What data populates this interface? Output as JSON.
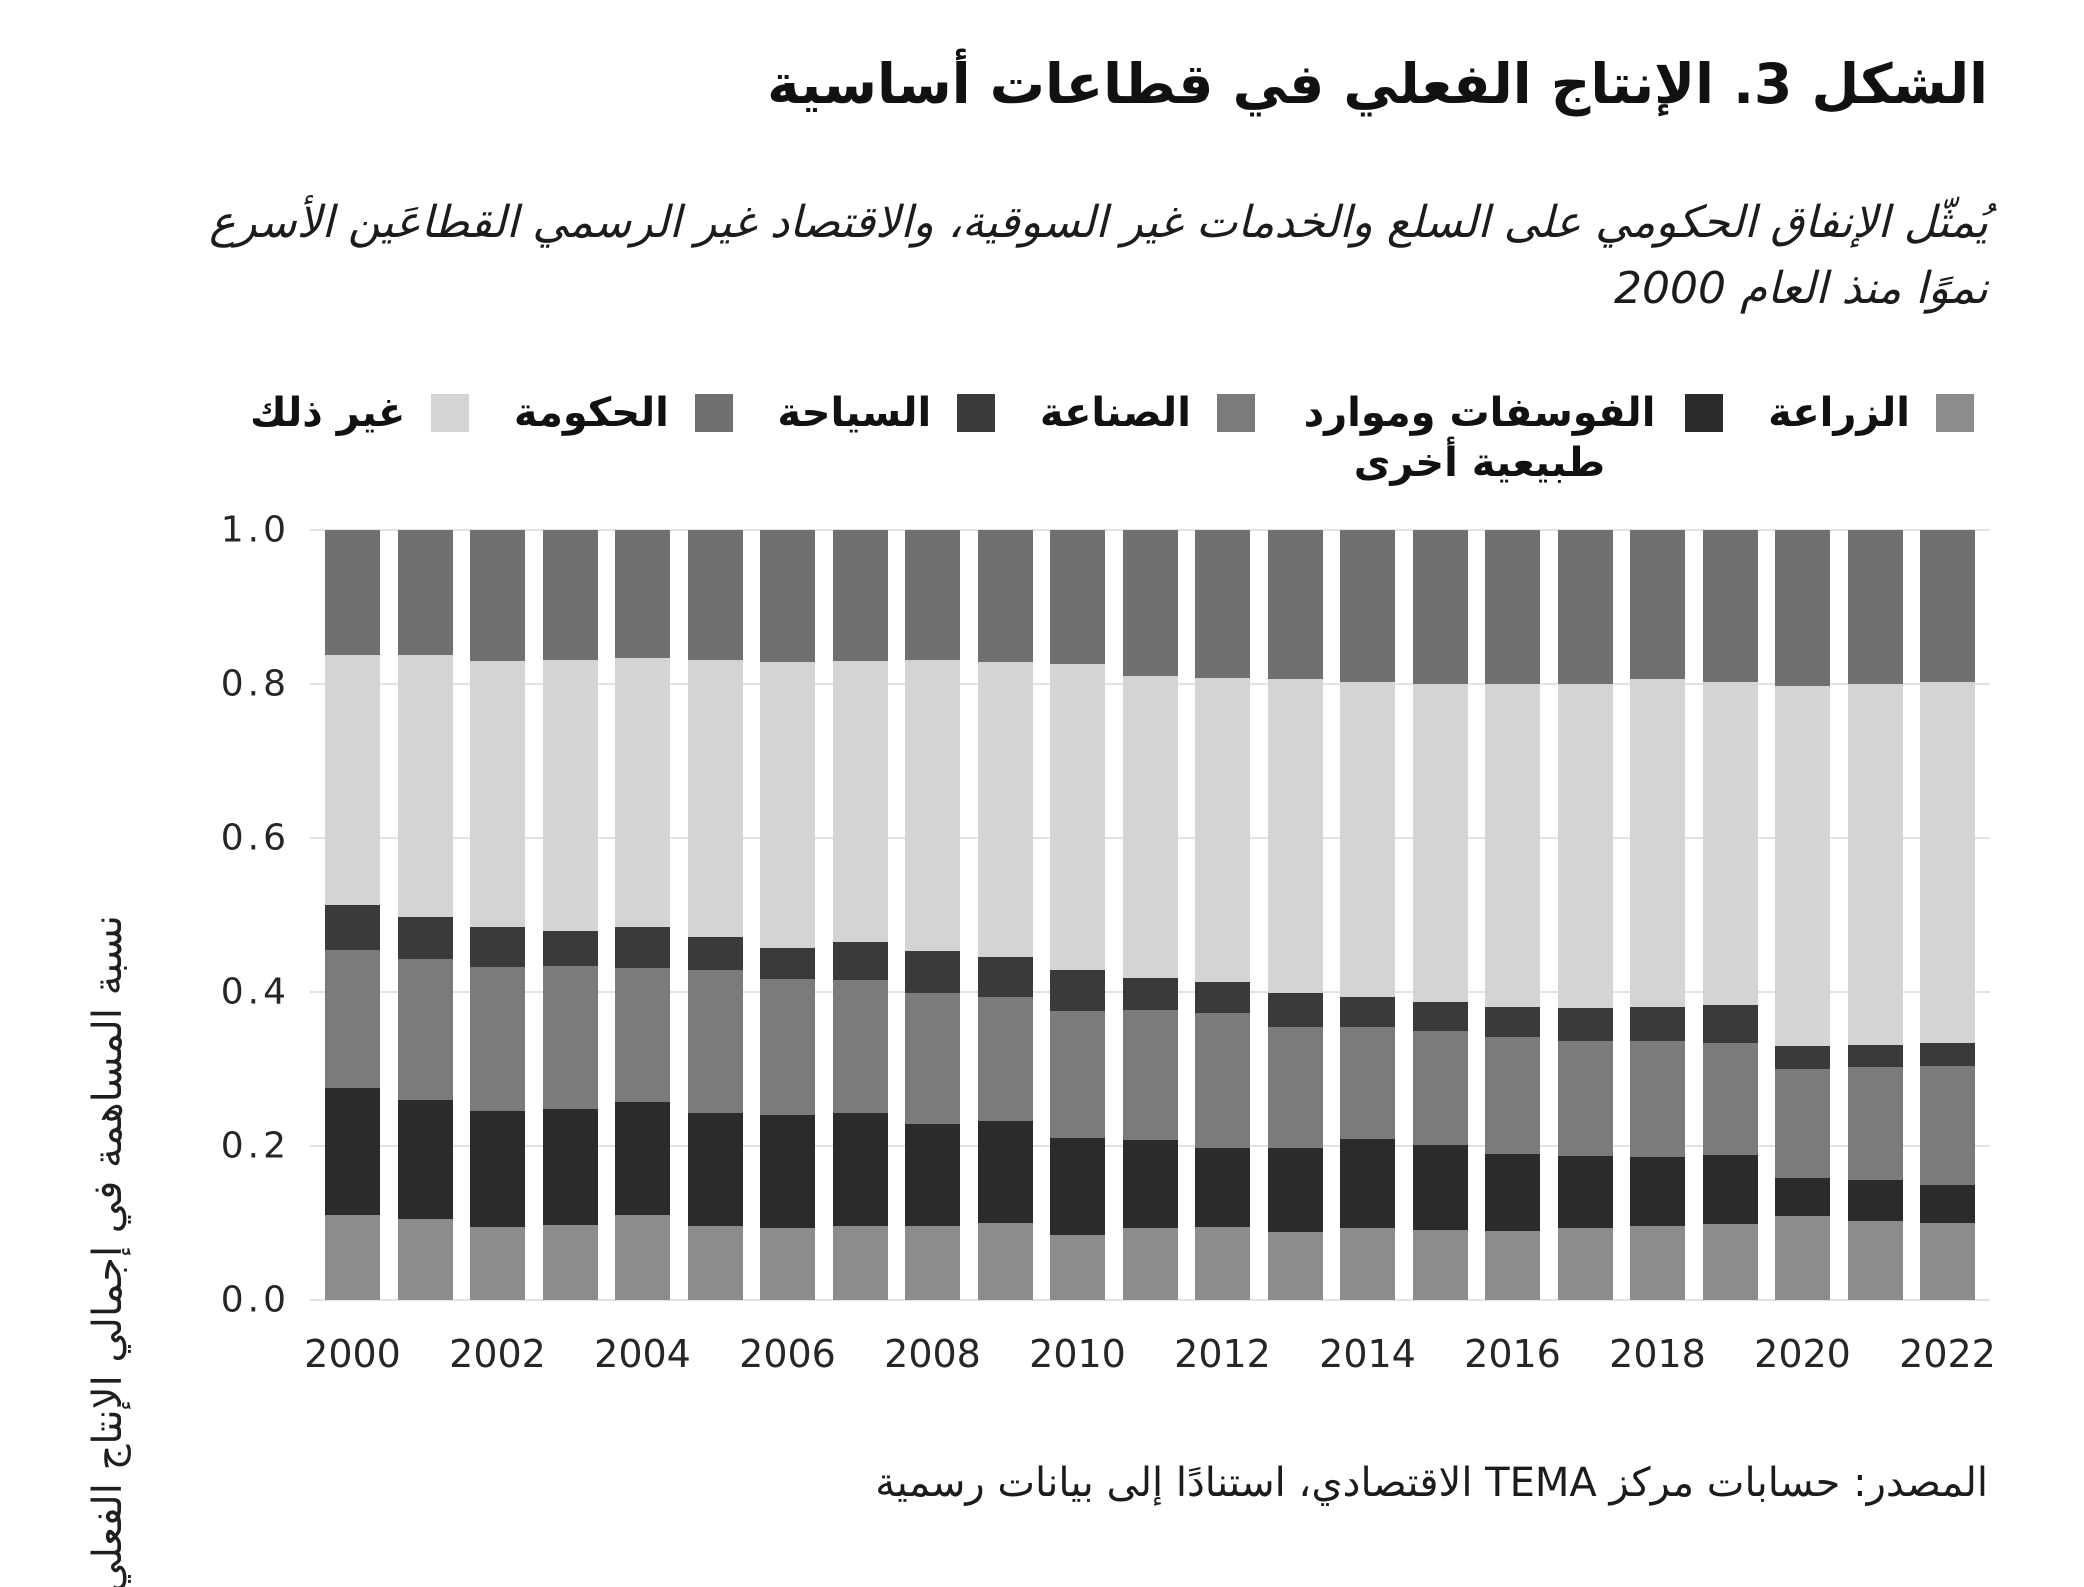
{
  "header": {
    "title": "الشكل 3. الإنتاج الفعلي في قطاعات أساسية",
    "subtitle_line1": "يُمثّل الإنفاق الحكومي على السلع والخدمات غير السوقية، والاقتصاد غير الرسمي القطاعَين الأسرع",
    "subtitle_line2": "نموًا منذ العام 2000"
  },
  "footer": {
    "source": "المصدر: حسابات مركز TEMA الاقتصادي، استنادًا إلى بيانات رسمية"
  },
  "colors": {
    "text": "#1a1a1a",
    "grid": "#e3e3e3",
    "agriculture": "#8c8c8c",
    "phosphates": "#2b2b2b",
    "industry": "#7b7b7b",
    "tourism": "#3a3a3a",
    "other": "#d4d4d4",
    "government": "#707070"
  },
  "chart_data": {
    "type": "bar",
    "stacked": true,
    "title": "الشكل 3. الإنتاج الفعلي في قطاعات أساسية",
    "xlabel": "",
    "ylabel": "نسبة المساهمة في إجمالي الإنتاج الفعلي",
    "ylim": [
      0.0,
      1.0
    ],
    "grid": "horizontal",
    "legend_position": "top",
    "y_tick_labels": [
      "0.0",
      "0.2",
      "0.4",
      "0.6",
      "0.8",
      "1.0"
    ],
    "x_tick_labels": [
      "2000",
      "2002",
      "2004",
      "2006",
      "2008",
      "2010",
      "2012",
      "2014",
      "2016",
      "2018",
      "2020",
      "2022"
    ],
    "categories": [
      2000,
      2001,
      2002,
      2003,
      2004,
      2005,
      2006,
      2007,
      2008,
      2009,
      2010,
      2011,
      2012,
      2013,
      2014,
      2015,
      2016,
      2017,
      2018,
      2019,
      2020,
      2021,
      2022
    ],
    "series_bottom_to_top": [
      {
        "name": "الزراعة",
        "color": "#8c8c8c",
        "values": [
          0.11,
          0.105,
          0.095,
          0.098,
          0.11,
          0.096,
          0.094,
          0.096,
          0.096,
          0.1,
          0.085,
          0.093,
          0.095,
          0.088,
          0.093,
          0.091,
          0.09,
          0.094,
          0.096,
          0.099,
          0.109,
          0.102,
          0.1
        ]
      },
      {
        "name": "الفوسفات وموارد طبيعية أخرى",
        "color": "#2b2b2b",
        "values": [
          0.165,
          0.155,
          0.15,
          0.15,
          0.147,
          0.147,
          0.146,
          0.147,
          0.133,
          0.132,
          0.126,
          0.115,
          0.102,
          0.109,
          0.116,
          0.11,
          0.1,
          0.093,
          0.09,
          0.089,
          0.049,
          0.054,
          0.05
        ]
      },
      {
        "name": "الصناعة",
        "color": "#7b7b7b",
        "values": [
          0.18,
          0.183,
          0.188,
          0.186,
          0.174,
          0.186,
          0.177,
          0.173,
          0.17,
          0.162,
          0.165,
          0.168,
          0.176,
          0.158,
          0.146,
          0.149,
          0.151,
          0.15,
          0.151,
          0.146,
          0.142,
          0.146,
          0.154
        ]
      },
      {
        "name": "السياحة",
        "color": "#3a3a3a",
        "values": [
          0.058,
          0.055,
          0.052,
          0.045,
          0.053,
          0.043,
          0.04,
          0.049,
          0.054,
          0.052,
          0.053,
          0.042,
          0.04,
          0.044,
          0.039,
          0.037,
          0.039,
          0.042,
          0.044,
          0.049,
          0.03,
          0.029,
          0.03
        ]
      },
      {
        "name": "غير ذلك",
        "color": "#d4d4d4",
        "values": [
          0.325,
          0.34,
          0.345,
          0.352,
          0.35,
          0.359,
          0.372,
          0.365,
          0.378,
          0.382,
          0.397,
          0.392,
          0.395,
          0.407,
          0.409,
          0.413,
          0.42,
          0.421,
          0.425,
          0.42,
          0.467,
          0.469,
          0.468
        ]
      },
      {
        "name": "الحكومة",
        "color": "#707070",
        "values": [
          0.162,
          0.162,
          0.17,
          0.169,
          0.166,
          0.169,
          0.171,
          0.17,
          0.169,
          0.172,
          0.174,
          0.19,
          0.192,
          0.194,
          0.197,
          0.2,
          0.2,
          0.2,
          0.194,
          0.197,
          0.203,
          0.2,
          0.198
        ]
      }
    ],
    "legend_right_to_left": [
      {
        "label": "الزراعة",
        "color": "#8c8c8c"
      },
      {
        "label": "الفوسفات وموارد طبيعية أخرى",
        "color": "#2b2b2b"
      },
      {
        "label": "الصناعة",
        "color": "#7b7b7b"
      },
      {
        "label": "السياحة",
        "color": "#3a3a3a"
      },
      {
        "label": "الحكومة",
        "color": "#707070"
      },
      {
        "label": "غير ذلك",
        "color": "#d4d4d4"
      }
    ]
  }
}
